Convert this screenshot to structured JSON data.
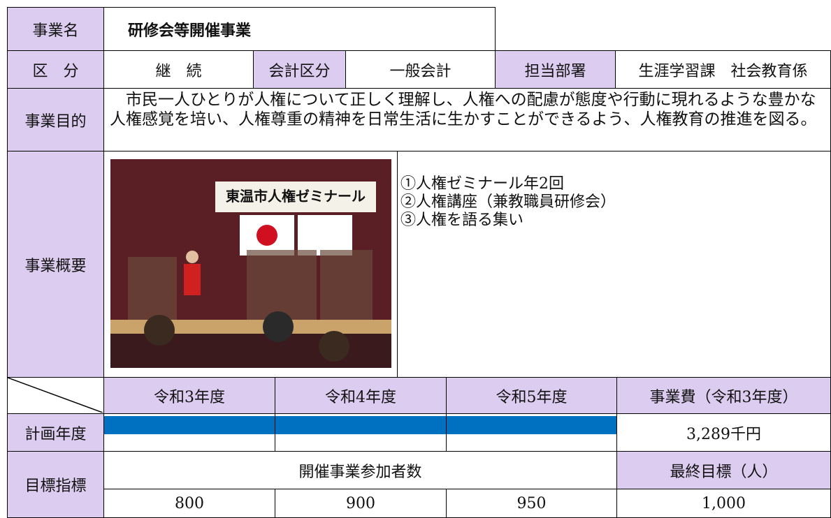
{
  "header": {
    "name_label": "事業名",
    "name": "研修会等開催事業"
  },
  "info": {
    "category_label": "区　分",
    "category": "継　続",
    "account_label": "会計区分",
    "account": "一般会計",
    "dept_label": "担当部署",
    "dept": "生涯学習課　社会教育係"
  },
  "purpose": {
    "label": "事業目的",
    "text": "　市民一人ひとりが人権について正しく理解し、人権への配慮が態度や行動に現れるような豊かな人権感覚を培い、人権尊重の精神を日常生活に生かすことができるよう、人権教育の推進を図る。"
  },
  "overview": {
    "label": "事業概要",
    "photo_banner": "東温市人権ゼミナール",
    "items": [
      "①人権ゼミナール年2回",
      "②人権講座（兼教職員研修会）",
      "③人権を語る集い"
    ]
  },
  "schedule": {
    "years": [
      "令和3年度",
      "令和4年度",
      "令和5年度"
    ],
    "cost_label": "事業費（令和3年度）",
    "plan_label": "計画年度",
    "cost": "3,289千円"
  },
  "target": {
    "label": "目標指標",
    "indicator": "開催事業参加者数",
    "final_label": "最終目標（人）",
    "values": [
      "800",
      "900",
      "950"
    ],
    "final": "1,000"
  }
}
